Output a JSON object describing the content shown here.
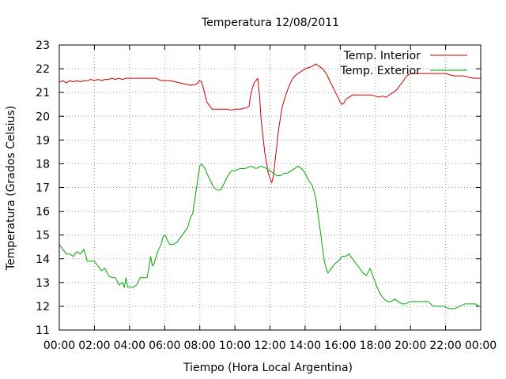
{
  "chart_data": {
    "type": "line",
    "title": "Temperatura 12/08/2011",
    "xlabel": "Tiempo (Hora Local Argentina)",
    "ylabel": "Temperatura (Grados Celsius)",
    "xlim": [
      0,
      24
    ],
    "ylim": [
      11,
      23
    ],
    "grid": true,
    "legend_position": "top-right",
    "x_tick_labels": [
      "00:00",
      "02:00",
      "04:00",
      "06:00",
      "08:00",
      "10:00",
      "12:00",
      "14:00",
      "16:00",
      "18:00",
      "20:00",
      "22:00",
      "00:00"
    ],
    "y_tick_labels": [
      "11",
      "12",
      "13",
      "14",
      "15",
      "16",
      "17",
      "18",
      "19",
      "20",
      "21",
      "22",
      "23"
    ],
    "series": [
      {
        "name": "Temp. Interior",
        "color": "#cc0000",
        "x": [
          0,
          0.1,
          0.2,
          0.4,
          0.6,
          0.8,
          1.0,
          1.2,
          1.4,
          1.6,
          1.8,
          2.0,
          2.2,
          2.4,
          2.6,
          2.8,
          3.0,
          3.2,
          3.4,
          3.6,
          3.8,
          4.0,
          4.5,
          5.0,
          5.5,
          5.8,
          6.0,
          6.3,
          6.6,
          6.9,
          7.2,
          7.5,
          7.8,
          8.0,
          8.1,
          8.2,
          8.3,
          8.4,
          8.5,
          8.6,
          8.7,
          8.8,
          9.0,
          9.3,
          9.6,
          9.8,
          10.0,
          10.3,
          10.6,
          10.8,
          10.9,
          11.0,
          11.1,
          11.2,
          11.3,
          11.4,
          11.5,
          11.7,
          11.9,
          12.1,
          12.2,
          12.3,
          12.5,
          12.7,
          12.9,
          13.1,
          13.3,
          13.5,
          13.8,
          14.0,
          14.2,
          14.4,
          14.6,
          14.8,
          15.0,
          15.2,
          15.4,
          15.6,
          15.8,
          16.0,
          16.1,
          16.2,
          16.3,
          16.5,
          16.7,
          17.0,
          17.3,
          17.6,
          17.8,
          18.0,
          18.2,
          18.4,
          18.6,
          18.8,
          19.0,
          19.2,
          19.4,
          19.6,
          19.8,
          20.0,
          20.5,
          21.0,
          21.5,
          22.0,
          22.2,
          22.5,
          22.8,
          23.0,
          23.3,
          23.6,
          23.8,
          24.0
        ],
        "values": [
          21.45,
          21.45,
          21.5,
          21.4,
          21.5,
          21.45,
          21.5,
          21.45,
          21.5,
          21.5,
          21.55,
          21.5,
          21.55,
          21.5,
          21.55,
          21.55,
          21.6,
          21.55,
          21.6,
          21.55,
          21.6,
          21.6,
          21.6,
          21.6,
          21.6,
          21.5,
          21.5,
          21.5,
          21.45,
          21.4,
          21.35,
          21.3,
          21.35,
          21.5,
          21.45,
          21.2,
          20.9,
          20.6,
          20.5,
          20.4,
          20.3,
          20.3,
          20.3,
          20.3,
          20.3,
          20.25,
          20.3,
          20.3,
          20.35,
          20.4,
          20.9,
          21.2,
          21.4,
          21.5,
          21.6,
          20.9,
          19.8,
          18.5,
          17.6,
          17.2,
          17.5,
          18.2,
          19.5,
          20.4,
          20.9,
          21.3,
          21.6,
          21.75,
          21.9,
          22.0,
          22.05,
          22.1,
          22.2,
          22.1,
          22.0,
          21.8,
          21.5,
          21.2,
          20.9,
          20.6,
          20.5,
          20.55,
          20.7,
          20.8,
          20.9,
          20.9,
          20.9,
          20.9,
          20.9,
          20.85,
          20.8,
          20.85,
          20.8,
          20.9,
          21.0,
          21.1,
          21.3,
          21.5,
          21.7,
          21.8,
          21.8,
          21.8,
          21.8,
          21.8,
          21.75,
          21.7,
          21.7,
          21.7,
          21.65,
          21.6,
          21.6,
          21.6
        ]
      },
      {
        "name": "Temp. Exterior",
        "color": "#00aa00",
        "x": [
          0,
          0.2,
          0.4,
          0.6,
          0.8,
          1.0,
          1.2,
          1.4,
          1.6,
          1.7,
          1.8,
          2.0,
          2.2,
          2.4,
          2.6,
          2.8,
          3.0,
          3.2,
          3.4,
          3.6,
          3.7,
          3.8,
          3.9,
          4.0,
          4.2,
          4.4,
          4.6,
          4.8,
          5.0,
          5.1,
          5.2,
          5.3,
          5.4,
          5.6,
          5.8,
          5.9,
          6.0,
          6.1,
          6.2,
          6.3,
          6.5,
          6.7,
          6.9,
          7.1,
          7.3,
          7.5,
          7.6,
          7.7,
          7.8,
          7.9,
          8.0,
          8.1,
          8.2,
          8.3,
          8.4,
          8.6,
          8.8,
          9.0,
          9.2,
          9.4,
          9.6,
          9.8,
          10.0,
          10.3,
          10.6,
          10.9,
          11.2,
          11.5,
          11.8,
          12.0,
          12.2,
          12.4,
          12.6,
          12.8,
          13.0,
          13.2,
          13.4,
          13.6,
          13.8,
          14.0,
          14.2,
          14.4,
          14.6,
          14.8,
          14.9,
          15.0,
          15.1,
          15.2,
          15.3,
          15.5,
          15.7,
          15.9,
          16.1,
          16.3,
          16.5,
          16.7,
          16.9,
          17.1,
          17.3,
          17.5,
          17.7,
          17.9,
          18.1,
          18.3,
          18.5,
          18.7,
          18.9,
          19.1,
          19.3,
          19.5,
          19.7,
          20.0,
          20.3,
          20.6,
          21.0,
          21.3,
          21.6,
          21.9,
          22.2,
          22.5,
          22.8,
          23.1,
          23.4,
          23.7,
          23.9,
          24.0
        ],
        "values": [
          14.6,
          14.4,
          14.2,
          14.2,
          14.1,
          14.3,
          14.2,
          14.4,
          13.9,
          13.9,
          13.9,
          13.9,
          13.7,
          13.5,
          13.6,
          13.3,
          13.2,
          13.2,
          12.9,
          13.0,
          12.8,
          13.2,
          12.8,
          12.8,
          12.8,
          12.9,
          13.2,
          13.2,
          13.2,
          13.6,
          14.1,
          13.7,
          13.8,
          14.3,
          14.6,
          14.9,
          15.0,
          14.9,
          14.7,
          14.6,
          14.6,
          14.7,
          14.9,
          15.1,
          15.3,
          15.8,
          15.9,
          16.4,
          16.9,
          17.4,
          17.9,
          18.0,
          17.9,
          17.8,
          17.6,
          17.3,
          17.0,
          16.9,
          16.9,
          17.2,
          17.5,
          17.7,
          17.7,
          17.8,
          17.8,
          17.9,
          17.8,
          17.9,
          17.8,
          17.7,
          17.6,
          17.5,
          17.5,
          17.6,
          17.6,
          17.7,
          17.8,
          17.9,
          17.8,
          17.6,
          17.3,
          17.1,
          16.6,
          15.5,
          15.0,
          14.4,
          13.9,
          13.6,
          13.4,
          13.6,
          13.8,
          13.9,
          14.1,
          14.1,
          14.2,
          14.0,
          13.8,
          13.6,
          13.4,
          13.3,
          13.6,
          13.2,
          12.8,
          12.5,
          12.3,
          12.2,
          12.2,
          12.3,
          12.2,
          12.1,
          12.1,
          12.2,
          12.2,
          12.2,
          12.2,
          12.0,
          12.0,
          12.0,
          11.9,
          11.9,
          12.0,
          12.1,
          12.1,
          12.1,
          12.0,
          12.0
        ]
      }
    ]
  }
}
